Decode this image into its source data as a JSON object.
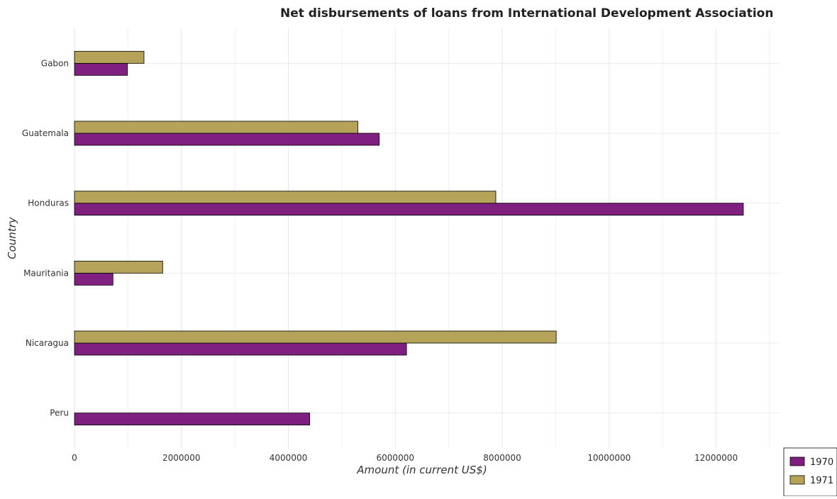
{
  "chart_data": {
    "type": "bar",
    "orientation": "horizontal",
    "title": "Net disbursements of loans from International Development Association",
    "xlabel": "Amount (in current US$)",
    "ylabel": "Country",
    "categories": [
      "Gabon",
      "Guatemala",
      "Honduras",
      "Mauritania",
      "Nicaragua",
      "Peru"
    ],
    "series": [
      {
        "name": "1970",
        "color": "#7f1f7f",
        "values": [
          990000,
          5700000,
          12510000,
          720000,
          6210000,
          4400000
        ]
      },
      {
        "name": "1971",
        "color": "#b5a35a",
        "values": [
          1300000,
          5300000,
          7880000,
          1650000,
          9010000,
          0
        ]
      }
    ],
    "x_ticks": [
      0,
      2000000,
      4000000,
      6000000,
      8000000,
      10000000,
      12000000
    ],
    "x_tick_labels": [
      "0",
      "2000000",
      "4000000",
      "6000000",
      "8000000",
      "10000000",
      "12000000"
    ],
    "xlim": [
      0,
      13200000
    ],
    "grid": true,
    "legend_position": "bottom-right"
  }
}
